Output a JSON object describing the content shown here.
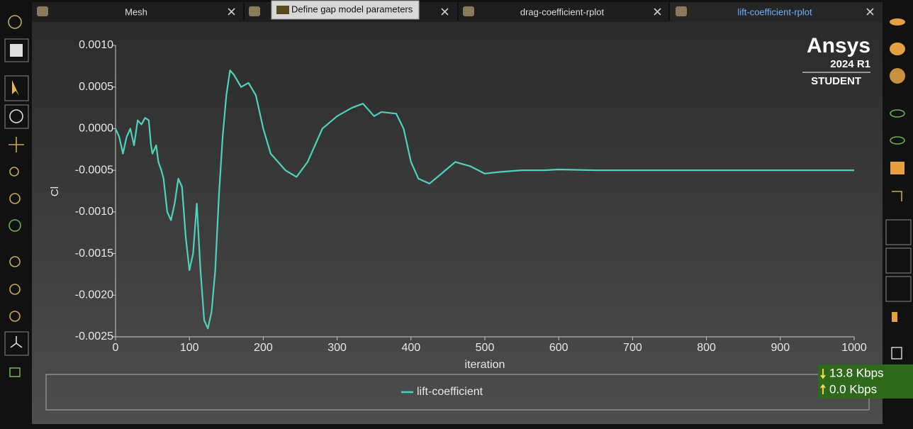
{
  "tabs": [
    {
      "label": "Mesh"
    },
    {
      "label": "Define gap model parameters"
    },
    {
      "label": "drag-coefficient-rplot"
    },
    {
      "label": "lift-coefficient-rplot"
    }
  ],
  "watermark": {
    "brand": "Ansys",
    "version": "2024 R1",
    "edition": "STUDENT"
  },
  "network": {
    "down": "13.8 Kbps",
    "up": "0.0 Kbps"
  },
  "chart_data": {
    "type": "line",
    "xlabel": "iteration",
    "ylabel": "Cl",
    "x": [
      0,
      5,
      10,
      15,
      20,
      25,
      30,
      35,
      40,
      45,
      48,
      50,
      55,
      58,
      62,
      65,
      70,
      75,
      80,
      85,
      90,
      95,
      100,
      105,
      110,
      115,
      120,
      125,
      130,
      135,
      140,
      145,
      150,
      155,
      160,
      170,
      180,
      190,
      200,
      210,
      220,
      230,
      245,
      260,
      280,
      300,
      320,
      335,
      350,
      360,
      380,
      390,
      400,
      410,
      425,
      440,
      460,
      480,
      500,
      520,
      550,
      580,
      600,
      650,
      700,
      750,
      800,
      850,
      900,
      950,
      1000
    ],
    "series": [
      {
        "name": "lift-coefficient",
        "color": "#4fd1bd",
        "values": [
          0.0,
          -0.0001,
          -0.0003,
          -0.0001,
          0.0,
          -0.0002,
          0.0001,
          5e-05,
          0.00013,
          0.0001,
          -0.0002,
          -0.0003,
          -0.0002,
          -0.0004,
          -0.0005,
          -0.0006,
          -0.001,
          -0.0011,
          -0.0009,
          -0.0006,
          -0.0007,
          -0.0013,
          -0.0017,
          -0.0015,
          -0.0009,
          -0.0017,
          -0.0023,
          -0.0024,
          -0.0022,
          -0.0017,
          -0.0008,
          -0.0001,
          0.0004,
          0.0007,
          0.00065,
          0.0005,
          0.00055,
          0.0004,
          0.0,
          -0.0003,
          -0.0004,
          -0.0005,
          -0.00058,
          -0.0004,
          0.0,
          0.00015,
          0.00025,
          0.0003,
          0.00015,
          0.0002,
          0.00018,
          0.0,
          -0.0004,
          -0.0006,
          -0.00066,
          -0.00055,
          -0.0004,
          -0.00045,
          -0.00054,
          -0.00052,
          -0.0005,
          -0.0005,
          -0.00049,
          -0.0005,
          -0.0005,
          -0.0005,
          -0.0005,
          -0.0005,
          -0.0005,
          -0.0005,
          -0.0005
        ]
      }
    ],
    "xlim": [
      0,
      1000
    ],
    "xticks": [
      0,
      100,
      200,
      300,
      400,
      500,
      600,
      700,
      800,
      900,
      1000
    ],
    "ylim": [
      -0.0025,
      0.001
    ],
    "yticks": [
      {
        "value": -0.0025,
        "label": "-0.0025"
      },
      {
        "value": -0.002,
        "label": "-0.0020"
      },
      {
        "value": -0.0015,
        "label": "-0.0015"
      },
      {
        "value": -0.001,
        "label": "-0.0010"
      },
      {
        "value": -0.0005,
        "label": "-0.0005"
      },
      {
        "value": 0,
        "label": "0.0000"
      },
      {
        "value": 0.0005,
        "label": "0.0005"
      },
      {
        "value": 0.001,
        "label": "0.0010"
      }
    ]
  }
}
